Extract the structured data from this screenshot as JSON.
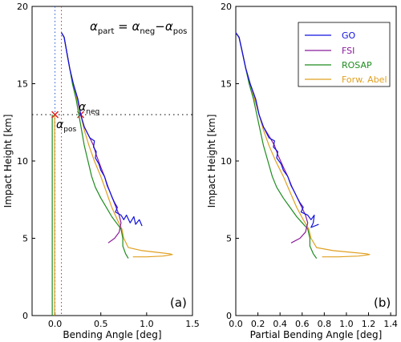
{
  "chart_data": [
    {
      "type": "line",
      "panel_tag": "(a)",
      "xlabel": "Bending Angle [deg]",
      "ylabel": "Impact Height [km]",
      "xlim": [
        -0.25,
        1.5
      ],
      "ylim": [
        0,
        20
      ],
      "xticks": [
        "0.0",
        "0.5",
        "1.0",
        "1.5"
      ],
      "yticks": [
        "0",
        "5",
        "10",
        "15",
        "20"
      ],
      "equation": {
        "lhs": "α",
        "lhs_sub": "part",
        "eq": " = ",
        "t1": "α",
        "t1_sub": "neg",
        "minus": "−",
        "t2": "α",
        "t2_sub": "pos"
      },
      "annotations": {
        "pos": {
          "label": "α",
          "sub": "pos",
          "x": 0.0,
          "y": 13.0
        },
        "neg": {
          "label": "α",
          "sub": "neg",
          "x": 0.28,
          "y": 13.0
        },
        "vline_pos_x": 0.0,
        "vline_neg_x": 0.07,
        "hline_y": 13.0,
        "green_floor_x": -0.03
      },
      "series": [
        {
          "name": "GO",
          "color": "#1010e0",
          "points": [
            [
              0.07,
              18.3
            ],
            [
              0.1,
              18.0
            ],
            [
              0.13,
              17.0
            ],
            [
              0.16,
              16.0
            ],
            [
              0.2,
              15.0
            ],
            [
              0.25,
              14.0
            ],
            [
              0.28,
              13.0
            ],
            [
              0.32,
              12.2
            ],
            [
              0.38,
              11.5
            ],
            [
              0.43,
              11.3
            ],
            [
              0.42,
              10.9
            ],
            [
              0.45,
              10.6
            ],
            [
              0.44,
              10.2
            ],
            [
              0.48,
              9.8
            ],
            [
              0.5,
              9.4
            ],
            [
              0.54,
              9.0
            ],
            [
              0.57,
              8.4
            ],
            [
              0.6,
              8.0
            ],
            [
              0.62,
              7.7
            ],
            [
              0.65,
              7.3
            ],
            [
              0.68,
              7.0
            ],
            [
              0.66,
              6.7
            ],
            [
              0.72,
              6.5
            ],
            [
              0.75,
              6.2
            ],
            [
              0.78,
              6.5
            ],
            [
              0.82,
              6.0
            ],
            [
              0.86,
              6.4
            ],
            [
              0.88,
              5.9
            ],
            [
              0.92,
              6.2
            ],
            [
              0.95,
              5.8
            ]
          ]
        },
        {
          "name": "FSI",
          "color": "#8a1a9a",
          "points": [
            [
              0.07,
              18.3
            ],
            [
              0.1,
              18.0
            ],
            [
              0.13,
              17.0
            ],
            [
              0.16,
              16.0
            ],
            [
              0.2,
              15.0
            ],
            [
              0.25,
              14.0
            ],
            [
              0.28,
              13.0
            ],
            [
              0.32,
              12.2
            ],
            [
              0.38,
              11.5
            ],
            [
              0.42,
              11.0
            ],
            [
              0.45,
              10.4
            ],
            [
              0.5,
              9.6
            ],
            [
              0.54,
              9.0
            ],
            [
              0.58,
              8.3
            ],
            [
              0.62,
              7.7
            ],
            [
              0.66,
              7.1
            ],
            [
              0.7,
              6.5
            ],
            [
              0.72,
              6.0
            ],
            [
              0.7,
              5.4
            ],
            [
              0.65,
              5.0
            ],
            [
              0.58,
              4.7
            ]
          ]
        },
        {
          "name": "ROSAP",
          "color": "#1e8c1e",
          "points": [
            [
              0.07,
              18.3
            ],
            [
              0.1,
              18.0
            ],
            [
              0.13,
              17.0
            ],
            [
              0.16,
              16.0
            ],
            [
              0.19,
              15.0
            ],
            [
              0.23,
              14.0
            ],
            [
              0.26,
              13.0
            ],
            [
              0.29,
              12.0
            ],
            [
              0.32,
              11.0
            ],
            [
              0.36,
              10.0
            ],
            [
              0.4,
              9.0
            ],
            [
              0.44,
              8.3
            ],
            [
              0.5,
              7.6
            ],
            [
              0.56,
              7.0
            ],
            [
              0.62,
              6.4
            ],
            [
              0.67,
              6.0
            ],
            [
              0.72,
              5.6
            ],
            [
              0.74,
              5.0
            ],
            [
              0.74,
              4.5
            ],
            [
              0.77,
              4.0
            ],
            [
              0.8,
              3.7
            ]
          ]
        },
        {
          "name": "Forw. Abel",
          "color": "#e0a020",
          "points": [
            [
              0.07,
              18.3
            ],
            [
              0.1,
              18.0
            ],
            [
              0.13,
              17.0
            ],
            [
              0.16,
              16.0
            ],
            [
              0.2,
              15.0
            ],
            [
              0.24,
              14.0
            ],
            [
              0.28,
              13.0
            ],
            [
              0.32,
              12.0
            ],
            [
              0.37,
              11.0
            ],
            [
              0.43,
              10.0
            ],
            [
              0.5,
              9.0
            ],
            [
              0.56,
              8.0
            ],
            [
              0.62,
              7.0
            ],
            [
              0.68,
              6.2
            ],
            [
              0.73,
              5.6
            ],
            [
              0.75,
              5.0
            ],
            [
              0.8,
              4.4
            ],
            [
              0.95,
              4.2
            ],
            [
              1.1,
              4.1
            ],
            [
              1.25,
              4.0
            ],
            [
              1.28,
              3.95
            ],
            [
              1.18,
              3.85
            ],
            [
              1.0,
              3.8
            ],
            [
              0.85,
              3.8
            ]
          ]
        }
      ]
    },
    {
      "type": "line",
      "panel_tag": "(b)",
      "xlabel": "Partial Bending Angle [deg]",
      "ylabel": "Impact Height [km]",
      "xlim": [
        0.0,
        1.45
      ],
      "ylim": [
        0,
        20
      ],
      "xticks": [
        "0.0",
        "0.2",
        "0.4",
        "0.6",
        "0.8",
        "1.0",
        "1.2",
        "1.4"
      ],
      "yticks": [
        "0",
        "5",
        "10",
        "15",
        "20"
      ],
      "legend_position": "top-right",
      "series": [
        {
          "name": "GO",
          "color": "#1010e0",
          "points": [
            [
              0.0,
              18.3
            ],
            [
              0.03,
              18.0
            ],
            [
              0.06,
              17.0
            ],
            [
              0.09,
              16.0
            ],
            [
              0.13,
              15.0
            ],
            [
              0.18,
              14.0
            ],
            [
              0.21,
              13.0
            ],
            [
              0.25,
              12.2
            ],
            [
              0.3,
              11.5
            ],
            [
              0.35,
              11.3
            ],
            [
              0.34,
              10.9
            ],
            [
              0.38,
              10.6
            ],
            [
              0.37,
              10.2
            ],
            [
              0.41,
              9.8
            ],
            [
              0.43,
              9.4
            ],
            [
              0.47,
              9.0
            ],
            [
              0.5,
              8.4
            ],
            [
              0.53,
              8.0
            ],
            [
              0.55,
              7.7
            ],
            [
              0.58,
              7.3
            ],
            [
              0.61,
              7.0
            ],
            [
              0.59,
              6.7
            ],
            [
              0.65,
              6.5
            ],
            [
              0.68,
              6.2
            ],
            [
              0.71,
              6.5
            ],
            [
              0.7,
              6.0
            ],
            [
              0.68,
              5.7
            ],
            [
              0.75,
              5.9
            ]
          ]
        },
        {
          "name": "FSI",
          "color": "#8a1a9a",
          "points": [
            [
              0.0,
              18.3
            ],
            [
              0.03,
              18.0
            ],
            [
              0.06,
              17.0
            ],
            [
              0.09,
              16.0
            ],
            [
              0.13,
              15.0
            ],
            [
              0.18,
              14.0
            ],
            [
              0.21,
              13.0
            ],
            [
              0.25,
              12.2
            ],
            [
              0.31,
              11.5
            ],
            [
              0.35,
              11.0
            ],
            [
              0.38,
              10.4
            ],
            [
              0.43,
              9.6
            ],
            [
              0.47,
              9.0
            ],
            [
              0.51,
              8.3
            ],
            [
              0.55,
              7.7
            ],
            [
              0.59,
              7.1
            ],
            [
              0.63,
              6.5
            ],
            [
              0.65,
              6.0
            ],
            [
              0.63,
              5.4
            ],
            [
              0.58,
              5.0
            ],
            [
              0.5,
              4.7
            ]
          ]
        },
        {
          "name": "ROSAP",
          "color": "#1e8c1e",
          "points": [
            [
              0.0,
              18.3
            ],
            [
              0.03,
              18.0
            ],
            [
              0.06,
              17.0
            ],
            [
              0.09,
              16.0
            ],
            [
              0.12,
              15.0
            ],
            [
              0.16,
              14.0
            ],
            [
              0.19,
              13.0
            ],
            [
              0.22,
              12.0
            ],
            [
              0.25,
              11.0
            ],
            [
              0.29,
              10.0
            ],
            [
              0.33,
              9.0
            ],
            [
              0.37,
              8.3
            ],
            [
              0.43,
              7.6
            ],
            [
              0.49,
              7.0
            ],
            [
              0.55,
              6.4
            ],
            [
              0.6,
              6.0
            ],
            [
              0.65,
              5.6
            ],
            [
              0.67,
              5.0
            ],
            [
              0.67,
              4.5
            ],
            [
              0.7,
              4.0
            ],
            [
              0.73,
              3.7
            ]
          ]
        },
        {
          "name": "Forw. Abel",
          "color": "#e0a020",
          "points": [
            [
              0.0,
              18.3
            ],
            [
              0.03,
              18.0
            ],
            [
              0.06,
              17.0
            ],
            [
              0.09,
              16.0
            ],
            [
              0.13,
              15.0
            ],
            [
              0.17,
              14.0
            ],
            [
              0.21,
              13.0
            ],
            [
              0.25,
              12.0
            ],
            [
              0.3,
              11.0
            ],
            [
              0.36,
              10.0
            ],
            [
              0.43,
              9.0
            ],
            [
              0.49,
              8.0
            ],
            [
              0.55,
              7.0
            ],
            [
              0.61,
              6.2
            ],
            [
              0.66,
              5.6
            ],
            [
              0.68,
              5.0
            ],
            [
              0.73,
              4.4
            ],
            [
              0.88,
              4.2
            ],
            [
              1.03,
              4.1
            ],
            [
              1.18,
              4.0
            ],
            [
              1.21,
              3.95
            ],
            [
              1.11,
              3.85
            ],
            [
              0.93,
              3.8
            ],
            [
              0.78,
              3.8
            ]
          ]
        }
      ]
    }
  ],
  "legend": [
    {
      "label": "GO",
      "color": "#1010e0"
    },
    {
      "label": "FSI",
      "color": "#8a1a9a"
    },
    {
      "label": "ROSAP",
      "color": "#1e8c1e"
    },
    {
      "label": "Forw. Abel",
      "color": "#e0a020"
    }
  ]
}
